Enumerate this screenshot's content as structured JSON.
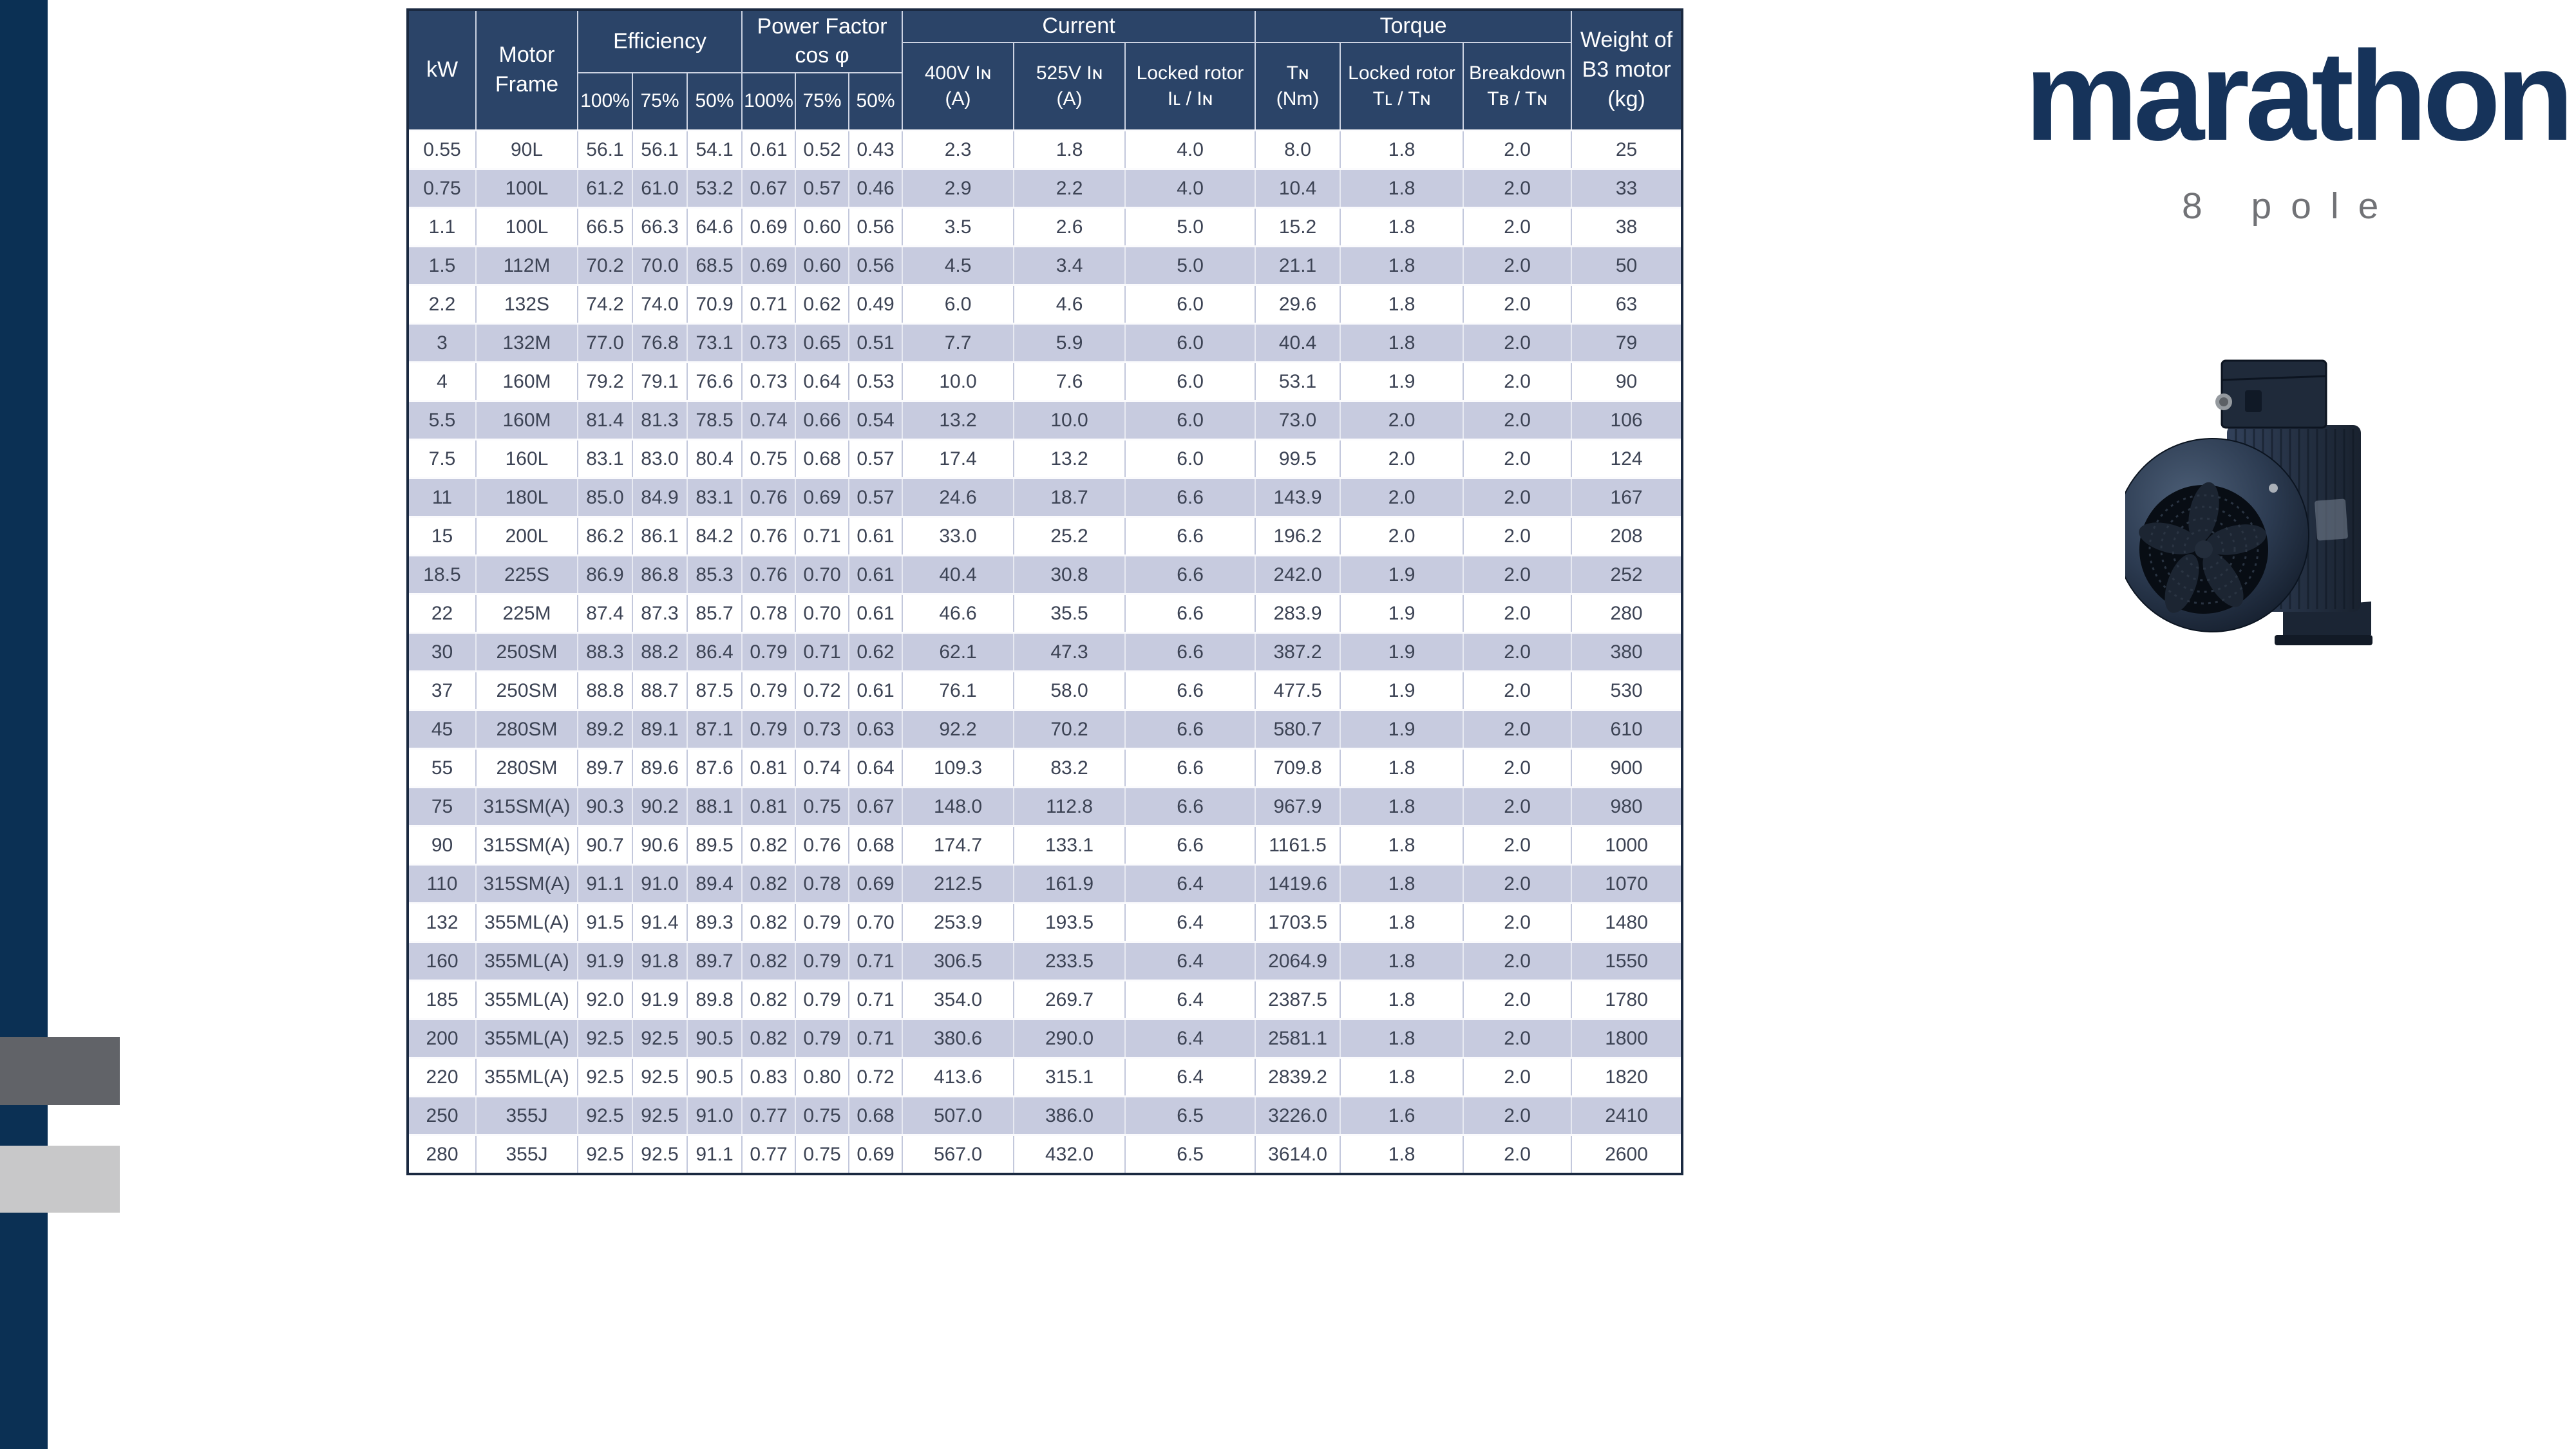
{
  "brand": {
    "logo": "marathon",
    "subtitle": "8 pole",
    "logo_color": "#16335a",
    "subtitle_color": "#717276"
  },
  "decor": {
    "left_bar_color": "#0b3054",
    "rect_dark_color": "#616368",
    "rect_light_color": "#c8c8c9"
  },
  "table": {
    "header_bg": "#2b4468",
    "alt_row_bg": "#c7cbdf",
    "headers": {
      "kw": "kW",
      "motor_frame": "Motor\nFrame",
      "efficiency": "Efficiency",
      "power_factor": "Power Factor\ncos φ",
      "current": "Current",
      "torque": "Torque",
      "weight": "Weight of\nB3 motor\n(kg)",
      "pct": [
        "100%",
        "75%",
        "50%",
        "100%",
        "75%",
        "50%"
      ],
      "sub": [
        "400V Iɴ\n(A)",
        "525V Iɴ\n(A)",
        "Locked rotor\nIʟ / Iɴ",
        "Tɴ\n(Nm)",
        "Locked rotor\nTʟ / Tɴ",
        "Breakdown\nTʙ / Tɴ"
      ]
    },
    "rows": [
      [
        "0.55",
        "90L",
        "56.1",
        "56.1",
        "54.1",
        "0.61",
        "0.52",
        "0.43",
        "2.3",
        "1.8",
        "4.0",
        "8.0",
        "1.8",
        "2.0",
        "25"
      ],
      [
        "0.75",
        "100L",
        "61.2",
        "61.0",
        "53.2",
        "0.67",
        "0.57",
        "0.46",
        "2.9",
        "2.2",
        "4.0",
        "10.4",
        "1.8",
        "2.0",
        "33"
      ],
      [
        "1.1",
        "100L",
        "66.5",
        "66.3",
        "64.6",
        "0.69",
        "0.60",
        "0.56",
        "3.5",
        "2.6",
        "5.0",
        "15.2",
        "1.8",
        "2.0",
        "38"
      ],
      [
        "1.5",
        "112M",
        "70.2",
        "70.0",
        "68.5",
        "0.69",
        "0.60",
        "0.56",
        "4.5",
        "3.4",
        "5.0",
        "21.1",
        "1.8",
        "2.0",
        "50"
      ],
      [
        "2.2",
        "132S",
        "74.2",
        "74.0",
        "70.9",
        "0.71",
        "0.62",
        "0.49",
        "6.0",
        "4.6",
        "6.0",
        "29.6",
        "1.8",
        "2.0",
        "63"
      ],
      [
        "3",
        "132M",
        "77.0",
        "76.8",
        "73.1",
        "0.73",
        "0.65",
        "0.51",
        "7.7",
        "5.9",
        "6.0",
        "40.4",
        "1.8",
        "2.0",
        "79"
      ],
      [
        "4",
        "160M",
        "79.2",
        "79.1",
        "76.6",
        "0.73",
        "0.64",
        "0.53",
        "10.0",
        "7.6",
        "6.0",
        "53.1",
        "1.9",
        "2.0",
        "90"
      ],
      [
        "5.5",
        "160M",
        "81.4",
        "81.3",
        "78.5",
        "0.74",
        "0.66",
        "0.54",
        "13.2",
        "10.0",
        "6.0",
        "73.0",
        "2.0",
        "2.0",
        "106"
      ],
      [
        "7.5",
        "160L",
        "83.1",
        "83.0",
        "80.4",
        "0.75",
        "0.68",
        "0.57",
        "17.4",
        "13.2",
        "6.0",
        "99.5",
        "2.0",
        "2.0",
        "124"
      ],
      [
        "11",
        "180L",
        "85.0",
        "84.9",
        "83.1",
        "0.76",
        "0.69",
        "0.57",
        "24.6",
        "18.7",
        "6.6",
        "143.9",
        "2.0",
        "2.0",
        "167"
      ],
      [
        "15",
        "200L",
        "86.2",
        "86.1",
        "84.2",
        "0.76",
        "0.71",
        "0.61",
        "33.0",
        "25.2",
        "6.6",
        "196.2",
        "2.0",
        "2.0",
        "208"
      ],
      [
        "18.5",
        "225S",
        "86.9",
        "86.8",
        "85.3",
        "0.76",
        "0.70",
        "0.61",
        "40.4",
        "30.8",
        "6.6",
        "242.0",
        "1.9",
        "2.0",
        "252"
      ],
      [
        "22",
        "225M",
        "87.4",
        "87.3",
        "85.7",
        "0.78",
        "0.70",
        "0.61",
        "46.6",
        "35.5",
        "6.6",
        "283.9",
        "1.9",
        "2.0",
        "280"
      ],
      [
        "30",
        "250SM",
        "88.3",
        "88.2",
        "86.4",
        "0.79",
        "0.71",
        "0.62",
        "62.1",
        "47.3",
        "6.6",
        "387.2",
        "1.9",
        "2.0",
        "380"
      ],
      [
        "37",
        "250SM",
        "88.8",
        "88.7",
        "87.5",
        "0.79",
        "0.72",
        "0.61",
        "76.1",
        "58.0",
        "6.6",
        "477.5",
        "1.9",
        "2.0",
        "530"
      ],
      [
        "45",
        "280SM",
        "89.2",
        "89.1",
        "87.1",
        "0.79",
        "0.73",
        "0.63",
        "92.2",
        "70.2",
        "6.6",
        "580.7",
        "1.9",
        "2.0",
        "610"
      ],
      [
        "55",
        "280SM",
        "89.7",
        "89.6",
        "87.6",
        "0.81",
        "0.74",
        "0.64",
        "109.3",
        "83.2",
        "6.6",
        "709.8",
        "1.8",
        "2.0",
        "900"
      ],
      [
        "75",
        "315SM(A)",
        "90.3",
        "90.2",
        "88.1",
        "0.81",
        "0.75",
        "0.67",
        "148.0",
        "112.8",
        "6.6",
        "967.9",
        "1.8",
        "2.0",
        "980"
      ],
      [
        "90",
        "315SM(A)",
        "90.7",
        "90.6",
        "89.5",
        "0.82",
        "0.76",
        "0.68",
        "174.7",
        "133.1",
        "6.6",
        "1161.5",
        "1.8",
        "2.0",
        "1000"
      ],
      [
        "110",
        "315SM(A)",
        "91.1",
        "91.0",
        "89.4",
        "0.82",
        "0.78",
        "0.69",
        "212.5",
        "161.9",
        "6.4",
        "1419.6",
        "1.8",
        "2.0",
        "1070"
      ],
      [
        "132",
        "355ML(A)",
        "91.5",
        "91.4",
        "89.3",
        "0.82",
        "0.79",
        "0.70",
        "253.9",
        "193.5",
        "6.4",
        "1703.5",
        "1.8",
        "2.0",
        "1480"
      ],
      [
        "160",
        "355ML(A)",
        "91.9",
        "91.8",
        "89.7",
        "0.82",
        "0.79",
        "0.71",
        "306.5",
        "233.5",
        "6.4",
        "2064.9",
        "1.8",
        "2.0",
        "1550"
      ],
      [
        "185",
        "355ML(A)",
        "92.0",
        "91.9",
        "89.8",
        "0.82",
        "0.79",
        "0.71",
        "354.0",
        "269.7",
        "6.4",
        "2387.5",
        "1.8",
        "2.0",
        "1780"
      ],
      [
        "200",
        "355ML(A)",
        "92.5",
        "92.5",
        "90.5",
        "0.82",
        "0.79",
        "0.71",
        "380.6",
        "290.0",
        "6.4",
        "2581.1",
        "1.8",
        "2.0",
        "1800"
      ],
      [
        "220",
        "355ML(A)",
        "92.5",
        "92.5",
        "90.5",
        "0.83",
        "0.80",
        "0.72",
        "413.6",
        "315.1",
        "6.4",
        "2839.2",
        "1.8",
        "2.0",
        "1820"
      ],
      [
        "250",
        "355J",
        "92.5",
        "92.5",
        "91.0",
        "0.77",
        "0.75",
        "0.68",
        "507.0",
        "386.0",
        "6.5",
        "3226.0",
        "1.6",
        "2.0",
        "2410"
      ],
      [
        "280",
        "355J",
        "92.5",
        "92.5",
        "91.1",
        "0.77",
        "0.75",
        "0.69",
        "567.0",
        "432.0",
        "6.5",
        "3614.0",
        "1.8",
        "2.0",
        "2600"
      ]
    ]
  }
}
